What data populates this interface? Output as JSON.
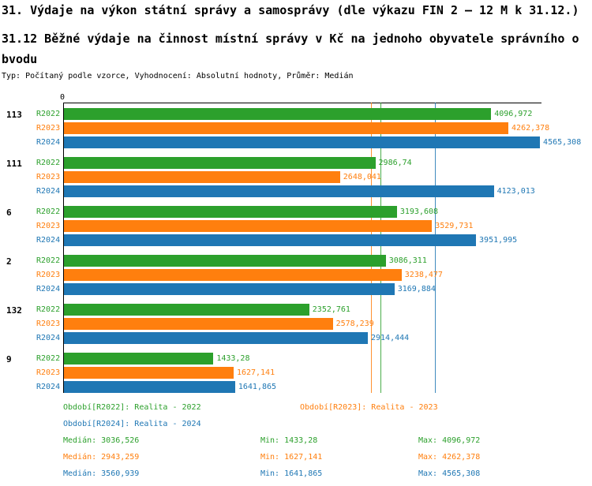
{
  "title": "31. Výdaje na výkon státní správy a samosprávy (dle výkazu FIN 2 – 12 M k 31.12.)",
  "subtitle": "31.12 Běžné výdaje na činnost místní správy v Kč na jednoho obyvatele správního obvodu",
  "meta": "Typ: Počítaný podle vzorce, Vyhodnocení: Absolutní hodnoty, Průměr: Medián",
  "chart_data": {
    "type": "bar",
    "orientation": "horizontal",
    "zero_label": "0",
    "xlim": [
      0,
      4580
    ],
    "grid": false,
    "legend_position": "bottom",
    "categories": [
      "113",
      "111",
      "6",
      "2",
      "132",
      "9"
    ],
    "series": [
      {
        "name": "R2022",
        "color": "#2ca02c",
        "values": [
          4096.972,
          2986.74,
          3193.608,
          3086.311,
          2352.761,
          1433.28
        ],
        "value_labels": [
          "4096,972",
          "2986,74",
          "3193,608",
          "3086,311",
          "2352,761",
          "1433,28"
        ],
        "median": 3036.526
      },
      {
        "name": "R2023",
        "color": "#ff7f0e",
        "values": [
          4262.378,
          2648.041,
          3529.731,
          3238.477,
          2578.239,
          1627.141
        ],
        "value_labels": [
          "4262,378",
          "2648,041",
          "3529,731",
          "3238,477",
          "2578,239",
          "1627,141"
        ],
        "median": 2943.259
      },
      {
        "name": "R2024",
        "color": "#1f77b4",
        "values": [
          4565.308,
          4123.013,
          3951.995,
          3169.884,
          2914.444,
          1641.865
        ],
        "value_labels": [
          "4565,308",
          "4123,013",
          "3951,995",
          "3169,884",
          "2914,444",
          "1641,865"
        ],
        "median": 3560.939
      }
    ]
  },
  "legend": {
    "items": [
      {
        "label": "Období[R2022]: Realita - 2022",
        "series": 0
      },
      {
        "label": "Období[R2023]: Realita - 2023",
        "series": 1
      },
      {
        "label": "Období[R2024]: Realita - 2024",
        "series": 2
      }
    ]
  },
  "stats": {
    "rows": [
      {
        "median": "Medián: 3036,526",
        "min": "Min: 1433,28",
        "max": "Max: 4096,972",
        "series": 0
      },
      {
        "median": "Medián: 2943,259",
        "min": "Min: 1627,141",
        "max": "Max: 4262,378",
        "series": 1
      },
      {
        "median": "Medián: 3560,939",
        "min": "Min: 1641,865",
        "max": "Max: 4565,308",
        "series": 2
      }
    ]
  }
}
